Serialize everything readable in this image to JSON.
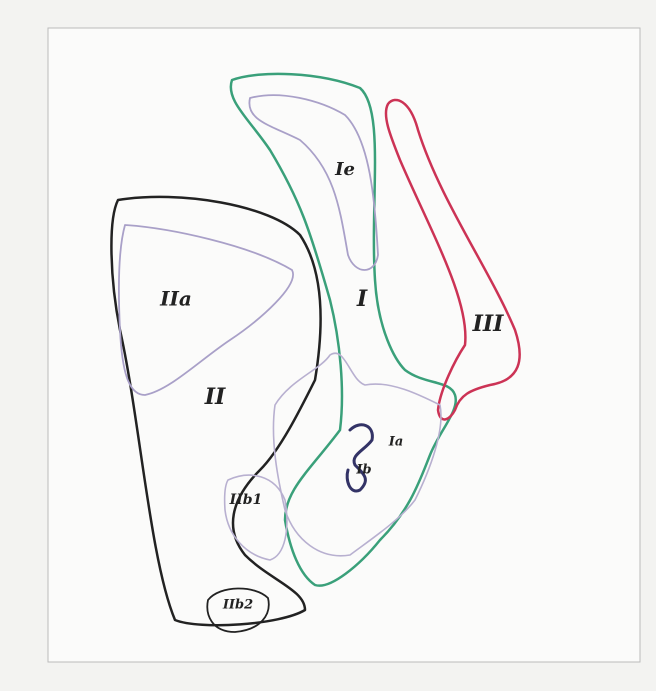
{
  "regions": [
    {
      "label": "IIa"
    },
    {
      "label": "II"
    },
    {
      "label": "Ie"
    },
    {
      "label": "I"
    },
    {
      "label": "III"
    },
    {
      "label": "Ia"
    },
    {
      "label": "Ib"
    },
    {
      "label": "IIb1"
    },
    {
      "label": "IIb2"
    }
  ]
}
